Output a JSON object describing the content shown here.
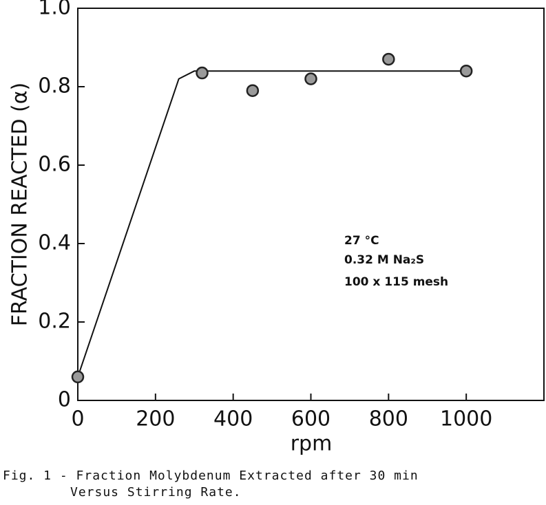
{
  "chart_data": {
    "type": "scatter",
    "x_label": "rpm",
    "y_label": "FRACTION REACTED (α)",
    "x": [
      0,
      320,
      450,
      600,
      800,
      1000
    ],
    "values": [
      0.06,
      0.835,
      0.79,
      0.82,
      0.87,
      0.84
    ],
    "color": "#9a9a9a",
    "fit_line": {
      "x": [
        0,
        260,
        300,
        1000
      ],
      "y": [
        0.06,
        0.82,
        0.84,
        0.84
      ]
    },
    "xlim": [
      0,
      1200
    ],
    "xticks": [
      0,
      200,
      400,
      600,
      800,
      1000
    ],
    "ylim": [
      0,
      1
    ],
    "yticks": [
      0,
      0.2,
      0.4,
      0.6,
      0.8,
      {
        "value": 1,
        "label": "1.0"
      }
    ],
    "grid": false,
    "annotations": [
      "27 °C",
      "0.32 M Na₂S",
      "100 x 115 mesh"
    ],
    "caption": [
      "Fig. 1 - Fraction Molybdenum Extracted after 30 min",
      "Versus Stirring Rate."
    ]
  }
}
